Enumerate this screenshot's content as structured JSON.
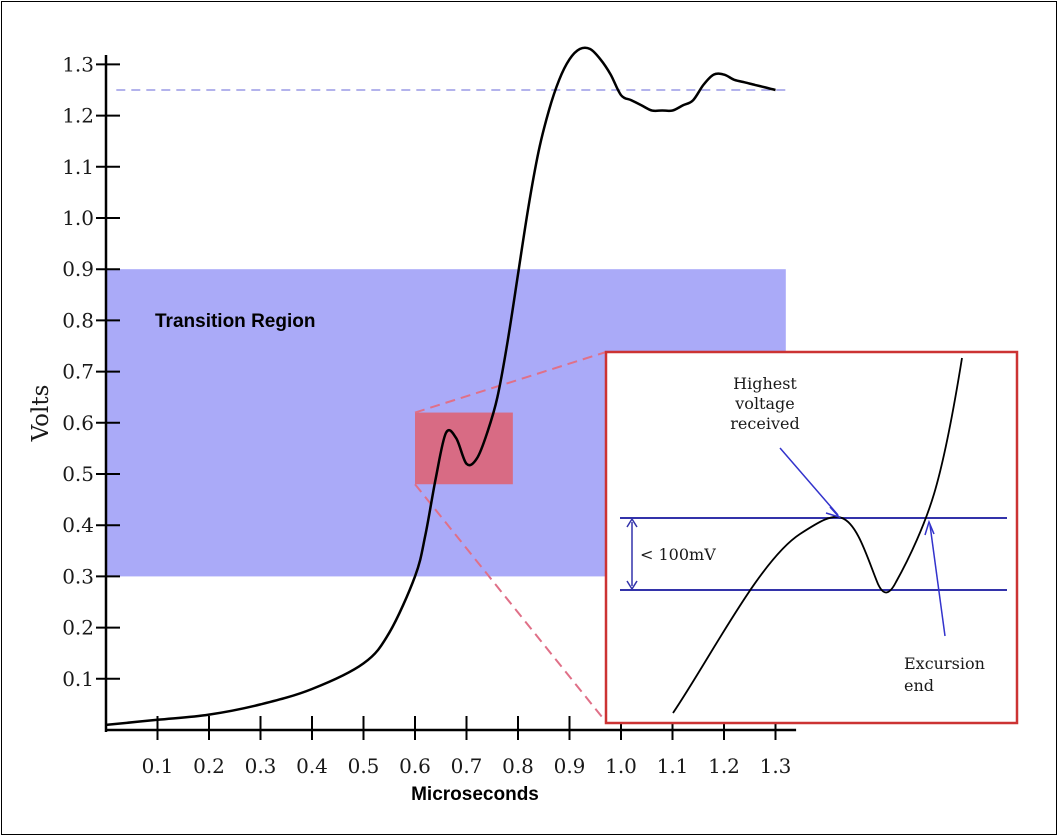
{
  "chart_data": {
    "type": "line",
    "xlabel": "Microseconds",
    "ylabel": "Volts",
    "xlim": [
      0,
      1.3
    ],
    "ylim": [
      0,
      1.3
    ],
    "x_ticks": [
      "0.1",
      "0.2",
      "0.3",
      "0.4",
      "0.5",
      "0.6",
      "0.7",
      "0.8",
      "0.9",
      "1.0",
      "1.1",
      "1.2",
      "1.3"
    ],
    "y_ticks": [
      "0.1",
      "0.2",
      "0.3",
      "0.4",
      "0.5",
      "0.6",
      "0.7",
      "0.8",
      "0.9",
      "1.0",
      "1.1",
      "1.2",
      "1.3"
    ],
    "reference_line": {
      "y": 1.25,
      "color": "#9a9ae6",
      "style": "dashed"
    },
    "transition_region": {
      "label": "Transition Region",
      "x_range": [
        0,
        1.32
      ],
      "y_range": [
        0.3,
        0.9
      ],
      "color": "#aaaaf8"
    },
    "zoom_region": {
      "x_range": [
        0.6,
        0.79
      ],
      "y_range": [
        0.48,
        0.62
      ],
      "color": "#e06070"
    },
    "series": [
      {
        "color": "#000000",
        "x": [
          0.0,
          0.1,
          0.2,
          0.3,
          0.4,
          0.5,
          0.55,
          0.6,
          0.62,
          0.64,
          0.66,
          0.68,
          0.7,
          0.72,
          0.74,
          0.76,
          0.78,
          0.8,
          0.82,
          0.84,
          0.86,
          0.88,
          0.9,
          0.92,
          0.94,
          0.96,
          0.98,
          1.0,
          1.02,
          1.04,
          1.06,
          1.08,
          1.1,
          1.12,
          1.14,
          1.16,
          1.18,
          1.2,
          1.22,
          1.24,
          1.26,
          1.28,
          1.3
        ],
        "y": [
          0.01,
          0.02,
          0.03,
          0.05,
          0.08,
          0.13,
          0.19,
          0.3,
          0.38,
          0.49,
          0.58,
          0.57,
          0.52,
          0.53,
          0.58,
          0.65,
          0.76,
          0.89,
          1.02,
          1.13,
          1.21,
          1.27,
          1.31,
          1.33,
          1.33,
          1.31,
          1.28,
          1.24,
          1.23,
          1.22,
          1.21,
          1.21,
          1.21,
          1.22,
          1.23,
          1.26,
          1.28,
          1.28,
          1.27,
          1.265,
          1.26,
          1.255,
          1.25
        ]
      }
    ],
    "inset": {
      "label_threshold": "< 100mV",
      "annotations": [
        {
          "text": [
            "Highest",
            "voltage",
            "received"
          ]
        },
        {
          "text": [
            "Excursion",
            "end"
          ]
        }
      ],
      "border_color": "#cc3333",
      "line_color": "#3333aa"
    }
  }
}
